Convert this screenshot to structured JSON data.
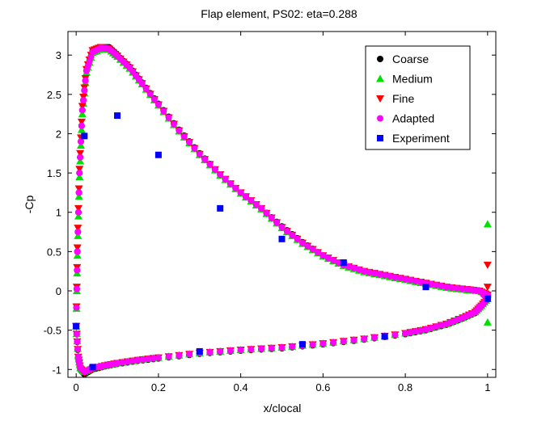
{
  "chart_data": {
    "type": "scatter",
    "title": "Flap element, PS02: eta=0.288",
    "xlabel": "x/clocal",
    "ylabel": "-Cp",
    "xlim": [
      -0.02,
      1.02
    ],
    "ylim": [
      -1.1,
      3.3
    ],
    "xticks": [
      0,
      0.2,
      0.4,
      0.6,
      0.8,
      1
    ],
    "xtick_labels": [
      "0",
      "0.2",
      "0.4",
      "0.6",
      "0.8",
      "1"
    ],
    "yticks": [
      -1,
      -0.5,
      0,
      0.5,
      1,
      1.5,
      2,
      2.5,
      3
    ],
    "ytick_labels": [
      "-1",
      "-0.5",
      "0",
      "0.5",
      "1",
      "1.5",
      "2",
      "2.5",
      "3"
    ],
    "legend_position": "top-right",
    "series": [
      {
        "name": "Coarse",
        "marker": "circle",
        "color": "#000000",
        "upper": {
          "x": [
            0.0,
            0.003,
            0.008,
            0.015,
            0.025,
            0.04,
            0.06,
            0.08,
            0.1,
            0.13,
            0.16,
            0.2,
            0.25,
            0.3,
            0.35,
            0.4,
            0.45,
            0.5,
            0.55,
            0.6,
            0.65,
            0.7,
            0.75,
            0.8,
            0.85,
            0.9,
            0.95,
            0.98,
            1.0
          ],
          "y": [
            -0.45,
            0.5,
            1.5,
            2.3,
            2.8,
            3.05,
            3.1,
            3.1,
            3.0,
            2.85,
            2.65,
            2.38,
            2.05,
            1.75,
            1.48,
            1.25,
            1.05,
            0.82,
            0.62,
            0.45,
            0.33,
            0.25,
            0.2,
            0.15,
            0.1,
            0.05,
            0.02,
            0.0,
            -0.05
          ]
        },
        "lower": {
          "x": [
            0.0,
            0.005,
            0.01,
            0.02,
            0.04,
            0.07,
            0.1,
            0.15,
            0.2,
            0.3,
            0.4,
            0.5,
            0.6,
            0.7,
            0.8,
            0.85,
            0.9,
            0.94,
            0.97,
            0.985,
            1.0
          ],
          "y": [
            -0.45,
            -0.85,
            -1.0,
            -1.06,
            -1.0,
            -0.96,
            -0.93,
            -0.89,
            -0.86,
            -0.8,
            -0.76,
            -0.73,
            -0.68,
            -0.62,
            -0.55,
            -0.5,
            -0.43,
            -0.35,
            -0.28,
            -0.2,
            -0.1
          ]
        }
      },
      {
        "name": "Medium",
        "marker": "triangle-up",
        "color": "#00e000",
        "upper": {
          "x": [
            0.0,
            0.003,
            0.008,
            0.015,
            0.025,
            0.04,
            0.06,
            0.08,
            0.1,
            0.13,
            0.16,
            0.2,
            0.25,
            0.3,
            0.35,
            0.4,
            0.45,
            0.5,
            0.55,
            0.6,
            0.65,
            0.7,
            0.75,
            0.8,
            0.85,
            0.9,
            0.95,
            0.98,
            1.0
          ],
          "y": [
            -0.45,
            0.45,
            1.45,
            2.25,
            2.78,
            3.03,
            3.08,
            3.07,
            2.98,
            2.83,
            2.63,
            2.36,
            2.03,
            1.73,
            1.47,
            1.24,
            1.04,
            0.8,
            0.6,
            0.44,
            0.32,
            0.24,
            0.19,
            0.14,
            0.09,
            0.04,
            0.01,
            0.0,
            -0.05
          ]
        },
        "lower": {
          "x": [
            0.0,
            0.005,
            0.01,
            0.02,
            0.04,
            0.07,
            0.1,
            0.15,
            0.2,
            0.3,
            0.4,
            0.5,
            0.6,
            0.7,
            0.8,
            0.85,
            0.9,
            0.94,
            0.97,
            0.985,
            1.0
          ],
          "y": [
            -0.45,
            -0.83,
            -0.98,
            -1.03,
            -0.98,
            -0.95,
            -0.92,
            -0.88,
            -0.85,
            -0.79,
            -0.75,
            -0.72,
            -0.67,
            -0.61,
            -0.54,
            -0.49,
            -0.42,
            -0.34,
            -0.27,
            -0.19,
            -0.1
          ]
        },
        "extra": {
          "x": [
            1.0,
            1.0
          ],
          "y": [
            0.85,
            -0.4
          ]
        }
      },
      {
        "name": "Fine",
        "marker": "triangle-down",
        "color": "#ff0000",
        "upper": {
          "x": [
            0.0,
            0.003,
            0.008,
            0.015,
            0.025,
            0.04,
            0.06,
            0.08,
            0.1,
            0.13,
            0.16,
            0.2,
            0.25,
            0.3,
            0.35,
            0.4,
            0.45,
            0.5,
            0.55,
            0.6,
            0.65,
            0.7,
            0.75,
            0.8,
            0.85,
            0.9,
            0.95,
            0.98,
            1.0
          ],
          "y": [
            -0.45,
            0.55,
            1.55,
            2.35,
            2.82,
            3.06,
            3.1,
            3.08,
            2.99,
            2.84,
            2.64,
            2.37,
            2.04,
            1.74,
            1.48,
            1.25,
            1.05,
            0.81,
            0.61,
            0.45,
            0.33,
            0.25,
            0.2,
            0.15,
            0.1,
            0.05,
            0.02,
            0.0,
            -0.05
          ]
        },
        "lower": {
          "x": [
            0.0,
            0.005,
            0.01,
            0.02,
            0.04,
            0.07,
            0.1,
            0.15,
            0.2,
            0.3,
            0.4,
            0.5,
            0.6,
            0.7,
            0.8,
            0.85,
            0.9,
            0.94,
            0.97,
            0.985,
            1.0
          ],
          "y": [
            -0.45,
            -0.84,
            -0.99,
            -1.04,
            -0.99,
            -0.95,
            -0.92,
            -0.88,
            -0.85,
            -0.79,
            -0.75,
            -0.72,
            -0.67,
            -0.61,
            -0.54,
            -0.49,
            -0.42,
            -0.34,
            -0.27,
            -0.19,
            -0.1
          ]
        },
        "extra": {
          "x": [
            1.0,
            1.0
          ],
          "y": [
            0.33,
            0.05
          ]
        }
      },
      {
        "name": "Adapted",
        "marker": "circle",
        "color": "#ff00ff",
        "upper": {
          "x": [
            0.0,
            0.003,
            0.008,
            0.015,
            0.025,
            0.04,
            0.06,
            0.08,
            0.1,
            0.13,
            0.16,
            0.2,
            0.25,
            0.3,
            0.35,
            0.4,
            0.45,
            0.5,
            0.55,
            0.6,
            0.65,
            0.7,
            0.75,
            0.8,
            0.85,
            0.9,
            0.95,
            0.98,
            1.0
          ],
          "y": [
            -0.45,
            0.5,
            1.5,
            2.3,
            2.8,
            3.04,
            3.09,
            3.08,
            2.99,
            2.84,
            2.64,
            2.37,
            2.04,
            1.74,
            1.48,
            1.25,
            1.05,
            0.81,
            0.61,
            0.45,
            0.33,
            0.25,
            0.2,
            0.15,
            0.1,
            0.05,
            0.02,
            0.0,
            -0.05
          ]
        },
        "lower": {
          "x": [
            0.0,
            0.005,
            0.01,
            0.02,
            0.04,
            0.07,
            0.1,
            0.15,
            0.2,
            0.3,
            0.4,
            0.5,
            0.6,
            0.7,
            0.8,
            0.85,
            0.9,
            0.94,
            0.97,
            0.985,
            1.0
          ],
          "y": [
            -0.45,
            -0.84,
            -0.98,
            -1.03,
            -0.98,
            -0.95,
            -0.92,
            -0.88,
            -0.85,
            -0.79,
            -0.75,
            -0.72,
            -0.67,
            -0.61,
            -0.54,
            -0.49,
            -0.42,
            -0.34,
            -0.27,
            -0.19,
            -0.1
          ]
        },
        "extra": {
          "x": [
            0.98,
            0.99
          ],
          "y": [
            -0.2,
            -0.05
          ]
        }
      },
      {
        "name": "Experiment",
        "marker": "square",
        "color": "#0000ff",
        "x": [
          0.0,
          0.02,
          0.1,
          0.2,
          0.35,
          0.5,
          0.65,
          0.85,
          1.0,
          0.04,
          0.3,
          0.55,
          0.75
        ],
        "y": [
          -0.45,
          1.97,
          2.23,
          1.73,
          1.05,
          0.66,
          0.36,
          0.05,
          -0.1,
          -0.97,
          -0.77,
          -0.68,
          -0.58
        ]
      }
    ]
  }
}
